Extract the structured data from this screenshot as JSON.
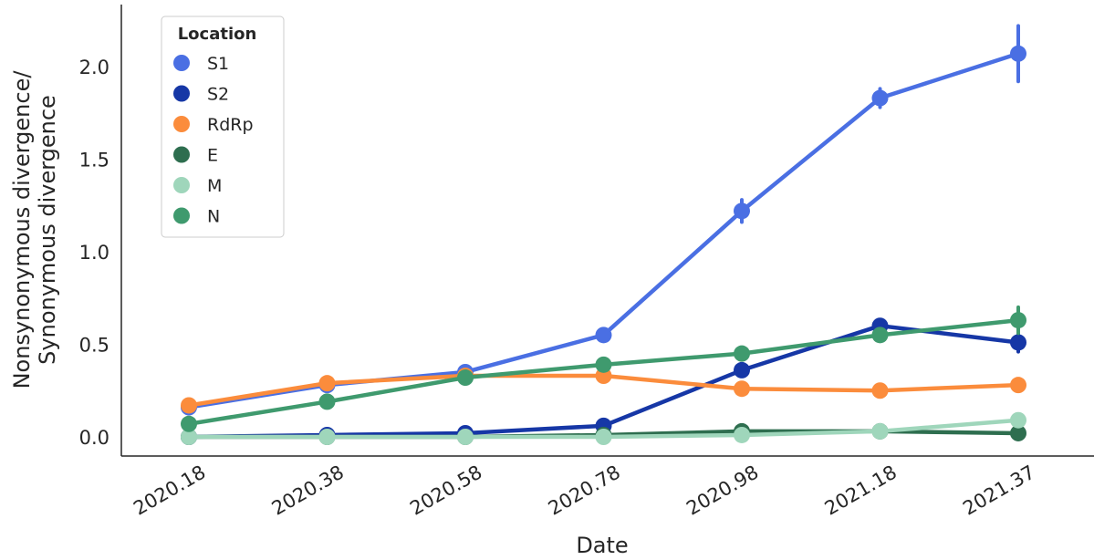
{
  "chart_data": {
    "type": "line",
    "xlabel": "Date",
    "ylabel": [
      "Nonsynonymous divergence/",
      "Synonymous divergence"
    ],
    "categories": [
      "2020.18",
      "2020.38",
      "2020.58",
      "2020.78",
      "2020.98",
      "2021.18",
      "2021.37"
    ],
    "yticks": [
      "0.0",
      "0.5",
      "1.0",
      "1.5",
      "2.0"
    ],
    "ylim": [
      -0.12,
      2.32
    ],
    "grid": false,
    "legend": {
      "title": "Location",
      "position": "top-left"
    },
    "series": [
      {
        "name": "S1",
        "color": "#4a6fe3",
        "values": [
          0.16,
          0.28,
          0.35,
          0.55,
          1.22,
          1.83,
          2.07
        ],
        "err": [
          0.01,
          0.01,
          0.01,
          0.02,
          0.06,
          0.05,
          0.15
        ]
      },
      {
        "name": "S2",
        "color": "#1637a6",
        "values": [
          0.0,
          0.01,
          0.02,
          0.06,
          0.36,
          0.6,
          0.51
        ],
        "err": [
          0.0,
          0.0,
          0.0,
          0.01,
          0.02,
          0.03,
          0.05
        ]
      },
      {
        "name": "RdRp",
        "color": "#fb8c3c",
        "values": [
          0.17,
          0.29,
          0.33,
          0.33,
          0.26,
          0.25,
          0.28
        ],
        "err": [
          0.01,
          0.01,
          0.01,
          0.01,
          0.01,
          0.01,
          0.02
        ]
      },
      {
        "name": "E",
        "color": "#2e6e4f",
        "values": [
          0.0,
          0.0,
          0.0,
          0.01,
          0.03,
          0.03,
          0.02
        ],
        "err": [
          0.0,
          0.0,
          0.0,
          0.0,
          0.0,
          0.0,
          0.0
        ]
      },
      {
        "name": "M",
        "color": "#9fd6bb",
        "values": [
          0.0,
          0.0,
          0.0,
          0.0,
          0.01,
          0.03,
          0.09
        ],
        "err": [
          0.0,
          0.0,
          0.0,
          0.0,
          0.0,
          0.01,
          0.01
        ]
      },
      {
        "name": "N",
        "color": "#3f9a6e",
        "values": [
          0.07,
          0.19,
          0.32,
          0.39,
          0.45,
          0.55,
          0.63
        ],
        "err": [
          0.01,
          0.01,
          0.01,
          0.01,
          0.02,
          0.03,
          0.07
        ]
      }
    ]
  }
}
